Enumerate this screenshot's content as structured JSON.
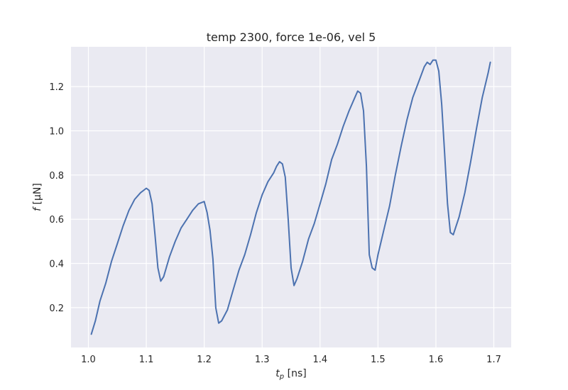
{
  "chart_data": {
    "type": "line",
    "title": "temp 2300, force 1e-06, vel 5",
    "xlabel_main": "t",
    "xlabel_sub": "p",
    "xlabel_unit": " [ns]",
    "ylabel_main": "f",
    "ylabel_unit": " [μN]",
    "xlim": [
      0.97,
      1.73
    ],
    "ylim": [
      0.02,
      1.38
    ],
    "xticks": [
      1.0,
      1.1,
      1.2,
      1.3,
      1.4,
      1.5,
      1.6,
      1.7
    ],
    "xtick_labels": [
      "1.0",
      "1.1",
      "1.2",
      "1.3",
      "1.4",
      "1.5",
      "1.6",
      "1.7"
    ],
    "yticks": [
      0.2,
      0.4,
      0.6,
      0.8,
      1.0,
      1.2
    ],
    "ytick_labels": [
      "0.2",
      "0.4",
      "0.6",
      "0.8",
      "1.0",
      "1.2"
    ],
    "grid": true,
    "background": "#eaeaf2",
    "line_color": "#4c72b0",
    "series": [
      {
        "x": [
          1.005,
          1.012,
          1.02,
          1.03,
          1.04,
          1.05,
          1.06,
          1.07,
          1.08,
          1.09,
          1.1,
          1.105,
          1.11,
          1.115,
          1.12,
          1.125,
          1.13,
          1.14,
          1.15,
          1.16,
          1.17,
          1.18,
          1.19,
          1.2,
          1.205,
          1.21,
          1.215,
          1.22,
          1.225,
          1.23,
          1.24,
          1.25,
          1.26,
          1.27,
          1.28,
          1.29,
          1.3,
          1.31,
          1.32,
          1.325,
          1.33,
          1.335,
          1.34,
          1.345,
          1.35,
          1.355,
          1.36,
          1.37,
          1.38,
          1.39,
          1.4,
          1.41,
          1.42,
          1.43,
          1.44,
          1.45,
          1.46,
          1.465,
          1.47,
          1.475,
          1.48,
          1.485,
          1.49,
          1.495,
          1.5,
          1.51,
          1.52,
          1.53,
          1.54,
          1.55,
          1.56,
          1.57,
          1.58,
          1.585,
          1.59,
          1.595,
          1.6,
          1.605,
          1.61,
          1.615,
          1.62,
          1.625,
          1.63,
          1.64,
          1.65,
          1.66,
          1.67,
          1.68,
          1.69,
          1.694
        ],
        "y": [
          0.08,
          0.14,
          0.23,
          0.31,
          0.41,
          0.49,
          0.57,
          0.64,
          0.69,
          0.72,
          0.74,
          0.73,
          0.67,
          0.53,
          0.38,
          0.32,
          0.34,
          0.43,
          0.5,
          0.56,
          0.6,
          0.64,
          0.67,
          0.68,
          0.63,
          0.55,
          0.42,
          0.2,
          0.13,
          0.14,
          0.19,
          0.28,
          0.37,
          0.44,
          0.53,
          0.63,
          0.71,
          0.77,
          0.81,
          0.84,
          0.86,
          0.85,
          0.79,
          0.6,
          0.38,
          0.3,
          0.33,
          0.41,
          0.51,
          0.58,
          0.67,
          0.76,
          0.87,
          0.94,
          1.02,
          1.09,
          1.15,
          1.18,
          1.17,
          1.09,
          0.84,
          0.44,
          0.38,
          0.37,
          0.44,
          0.55,
          0.66,
          0.8,
          0.93,
          1.05,
          1.15,
          1.22,
          1.29,
          1.31,
          1.3,
          1.32,
          1.32,
          1.27,
          1.12,
          0.9,
          0.67,
          0.54,
          0.53,
          0.61,
          0.72,
          0.86,
          1.01,
          1.15,
          1.26,
          1.31
        ]
      }
    ]
  }
}
